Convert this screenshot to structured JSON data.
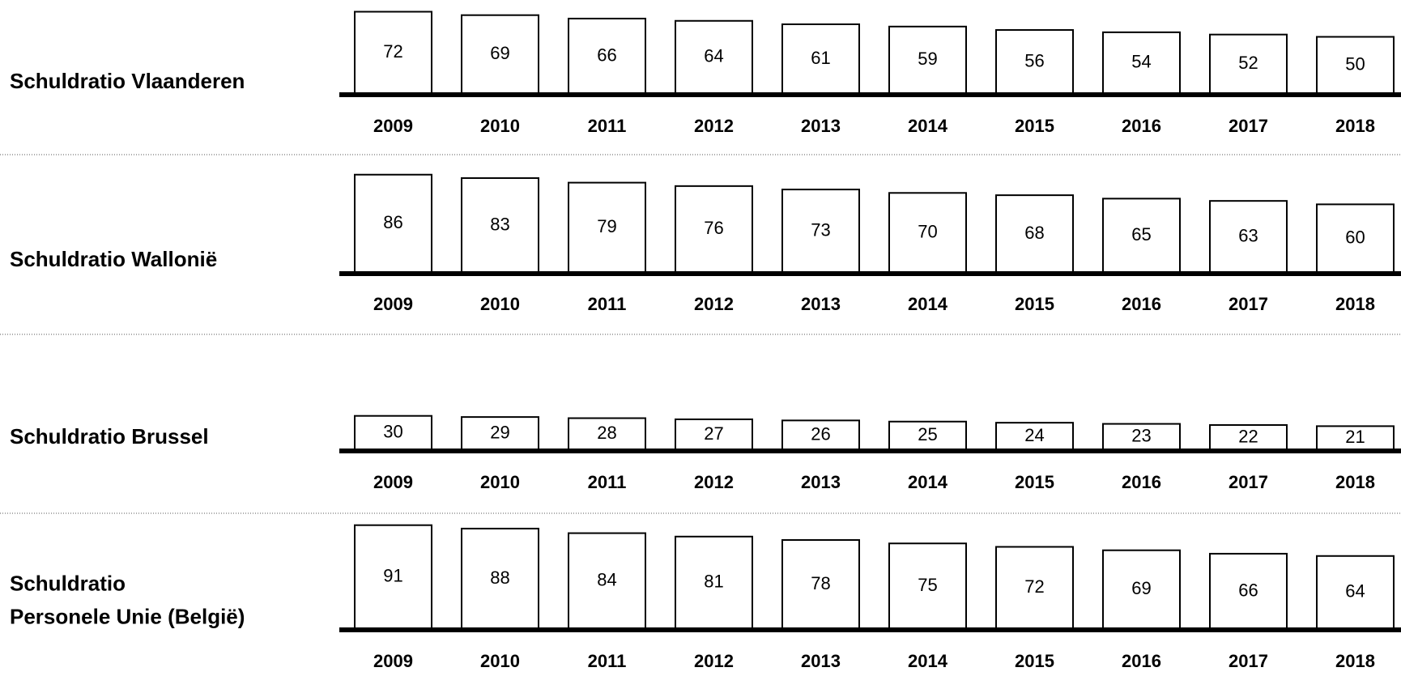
{
  "chart_data": [
    {
      "type": "bar",
      "title": "Schuldratio Vlaanderen",
      "categories": [
        "2009",
        "2010",
        "2011",
        "2012",
        "2013",
        "2014",
        "2015",
        "2016",
        "2017",
        "2018"
      ],
      "values": [
        72,
        69,
        66,
        64,
        61,
        59,
        56,
        54,
        52,
        50
      ]
    },
    {
      "type": "bar",
      "title": "Schuldratio Wallonië",
      "categories": [
        "2009",
        "2010",
        "2011",
        "2012",
        "2013",
        "2014",
        "2015",
        "2016",
        "2017",
        "2018"
      ],
      "values": [
        86,
        83,
        79,
        76,
        73,
        70,
        68,
        65,
        63,
        60
      ]
    },
    {
      "type": "bar",
      "title": "Schuldratio Brussel",
      "categories": [
        "2009",
        "2010",
        "2011",
        "2012",
        "2013",
        "2014",
        "2015",
        "2016",
        "2017",
        "2018"
      ],
      "values": [
        30,
        29,
        28,
        27,
        26,
        25,
        24,
        23,
        22,
        21
      ]
    },
    {
      "type": "bar",
      "title": [
        "Schuldratio",
        "Personele Unie (België)"
      ],
      "categories": [
        "2009",
        "2010",
        "2011",
        "2012",
        "2013",
        "2014",
        "2015",
        "2016",
        "2017",
        "2018"
      ],
      "values": [
        91,
        88,
        84,
        81,
        78,
        75,
        72,
        69,
        66,
        64
      ]
    }
  ]
}
